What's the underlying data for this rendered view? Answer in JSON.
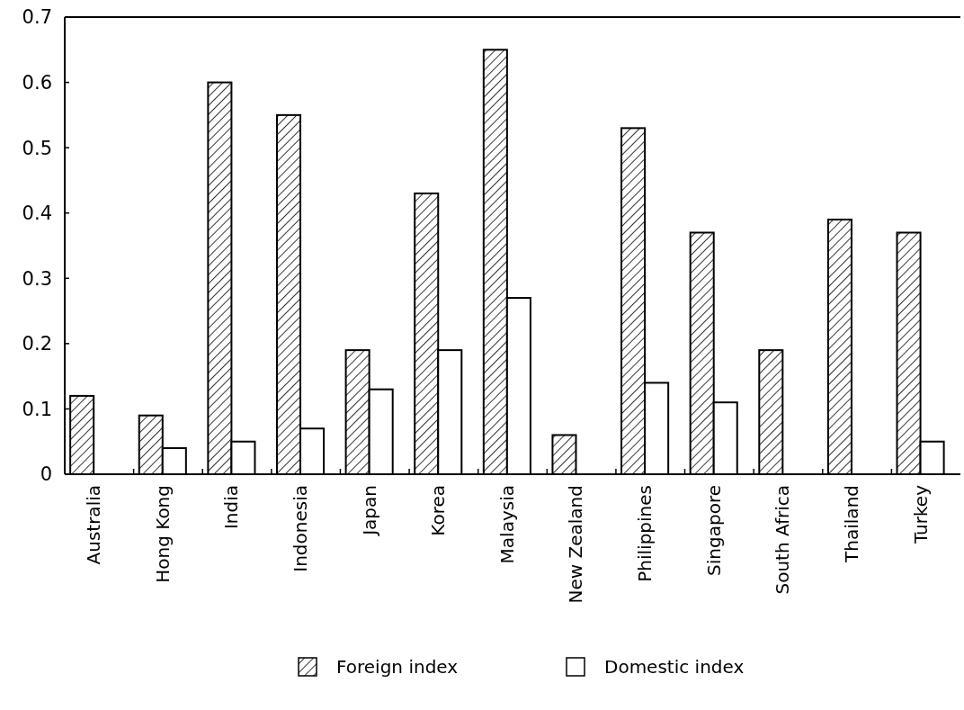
{
  "chart_data": {
    "type": "bar",
    "categories": [
      "Australia",
      "Hong Kong",
      "India",
      "Indonesia",
      "Japan",
      "Korea",
      "Malaysia",
      "New Zealand",
      "Philippines",
      "Singapore",
      "South Africa",
      "Thailand",
      "Turkey"
    ],
    "series": [
      {
        "name": "Foreign index",
        "color": "#000000",
        "values": [
          0.12,
          0.09,
          0.6,
          0.55,
          0.19,
          0.43,
          0.65,
          0.06,
          0.53,
          0.37,
          0.19,
          0.39,
          0.37
        ]
      },
      {
        "name": "Domestic index",
        "color": "#ffffff",
        "values": [
          null,
          0.04,
          0.05,
          0.07,
          0.13,
          0.19,
          0.27,
          null,
          0.14,
          0.11,
          null,
          null,
          0.05
        ]
      }
    ],
    "ylim": [
      0,
      0.7
    ],
    "yticks": [
      0,
      0.1,
      0.2,
      0.3,
      0.4,
      0.5,
      0.6,
      0.7
    ],
    "legend": "bottom"
  }
}
